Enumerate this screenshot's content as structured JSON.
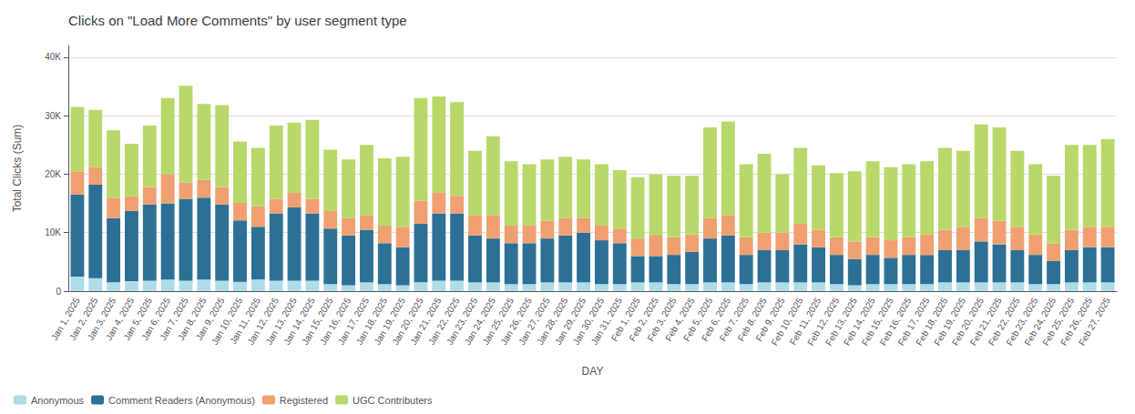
{
  "chart_data": {
    "type": "bar",
    "title": "Clicks on \"Load More Comments\" by user segment type",
    "ylabel": "Total Clicks (Sum)",
    "xlabel": "DAY",
    "stacked": true,
    "grid": true,
    "legend": "lower left",
    "ylim": [
      0,
      42000
    ],
    "yticks": [
      0,
      {
        "value": 10000,
        "label": "10K"
      },
      {
        "value": 20000,
        "label": "20K"
      },
      {
        "value": 30000,
        "label": "30K"
      },
      {
        "value": 40000,
        "label": "40K"
      }
    ],
    "categories": [
      "Jan 1, 2025",
      "Jan 2, 2025",
      "Jan 3, 2025",
      "Jan 4, 2025",
      "Jan 5, 2025",
      "Jan 6, 2025",
      "Jan 7, 2025",
      "Jan 8, 2025",
      "Jan 9, 2025",
      "Jan 10, 2025",
      "Jan 11, 2025",
      "Jan 12, 2025",
      "Jan 13, 2025",
      "Jan 14, 2025",
      "Jan 15, 2025",
      "Jan 16, 2025",
      "Jan 17, 2025",
      "Jan 18, 2025",
      "Jan 19, 2025",
      "Jan 20, 2025",
      "Jan 21, 2025",
      "Jan 22, 2025",
      "Jan 23, 2025",
      "Jan 24, 2025",
      "Jan 25, 2025",
      "Jan 26, 2025",
      "Jan 27, 2025",
      "Jan 28, 2025",
      "Jan 29, 2025",
      "Jan 30, 2025",
      "Jan 31, 2025",
      "Feb 1, 2025",
      "Feb 2, 2025",
      "Feb 3, 2025",
      "Feb 4, 2025",
      "Feb 5, 2025",
      "Feb 6, 2025",
      "Feb 7, 2025",
      "Feb 8, 2025",
      "Feb 9, 2025",
      "Feb 10, 2025",
      "Feb 11, 2025",
      "Feb 12, 2025",
      "Feb 13, 2025",
      "Feb 14, 2025",
      "Feb 15, 2025",
      "Feb 16, 2025",
      "Feb 17, 2025",
      "Feb 18, 2025",
      "Feb 19, 2025",
      "Feb 20, 2025",
      "Feb 21, 2025",
      "Feb 22, 2025",
      "Feb 23, 2025",
      "Feb 24, 2025",
      "Feb 25, 2025",
      "Feb 26, 2025",
      "Feb 27, 2025"
    ],
    "series": [
      {
        "name": "Anonymous",
        "color": "#aedde8",
        "values": [
          2500,
          2200,
          1500,
          1700,
          1800,
          2000,
          1800,
          2000,
          1800,
          1600,
          2000,
          1800,
          1800,
          1800,
          1200,
          1000,
          1500,
          1200,
          1000,
          1500,
          1800,
          1800,
          1500,
          1500,
          1200,
          1200,
          1500,
          1500,
          1500,
          1200,
          1200,
          1500,
          1500,
          1200,
          1200,
          1500,
          1500,
          1200,
          1500,
          1500,
          1500,
          1500,
          1200,
          1000,
          1200,
          1200,
          1200,
          1200,
          1500,
          1500,
          1500,
          1500,
          1500,
          1200,
          1200,
          1500,
          1500,
          1500
        ]
      },
      {
        "name": "Comment Readers (Anonymous)",
        "color": "#2d7096",
        "values": [
          14000,
          16000,
          11000,
          12000,
          13000,
          13000,
          14000,
          14000,
          13000,
          10500,
          9000,
          11500,
          12500,
          11500,
          9500,
          8500,
          9000,
          7000,
          6500,
          10000,
          11500,
          11500,
          8000,
          7500,
          7000,
          7000,
          7500,
          8000,
          8500,
          7500,
          7000,
          4500,
          4500,
          5000,
          5500,
          7500,
          8000,
          5000,
          5500,
          5500,
          6500,
          6000,
          5000,
          4500,
          5000,
          4500,
          5000,
          5000,
          5500,
          5500,
          7000,
          6500,
          5500,
          5000,
          4000,
          5500,
          6000,
          6000
        ]
      },
      {
        "name": "Registered",
        "color": "#f0a070",
        "values": [
          4000,
          3000,
          3500,
          2500,
          3000,
          5000,
          2800,
          3000,
          3000,
          3000,
          3500,
          2500,
          2500,
          2500,
          3000,
          3000,
          2500,
          3000,
          3500,
          4000,
          3500,
          3000,
          3500,
          4000,
          3000,
          3000,
          3000,
          3000,
          2500,
          2500,
          2500,
          3000,
          3500,
          3000,
          3000,
          3500,
          3500,
          3000,
          3000,
          3000,
          3500,
          3000,
          3000,
          3000,
          3000,
          3000,
          3000,
          3500,
          3500,
          4000,
          4000,
          4000,
          4000,
          3500,
          3000,
          3500,
          3500,
          3500
        ]
      },
      {
        "name": "UGC Contributers",
        "color": "#b8d96a",
        "values": [
          11000,
          9800,
          11500,
          9000,
          10500,
          13000,
          16500,
          13000,
          14000,
          10500,
          10000,
          12500,
          12000,
          13500,
          10500,
          10000,
          12000,
          11500,
          12000,
          17500,
          16500,
          16000,
          11000,
          13500,
          11000,
          10500,
          10500,
          10500,
          10000,
          10500,
          10000,
          10500,
          10500,
          10500,
          10000,
          15500,
          16000,
          12500,
          13500,
          10000,
          13000,
          11000,
          11000,
          12000,
          13000,
          12500,
          12500,
          12500,
          14000,
          13000,
          16000,
          16000,
          13000,
          12000,
          11500,
          14500,
          14000,
          15000
        ]
      }
    ]
  }
}
